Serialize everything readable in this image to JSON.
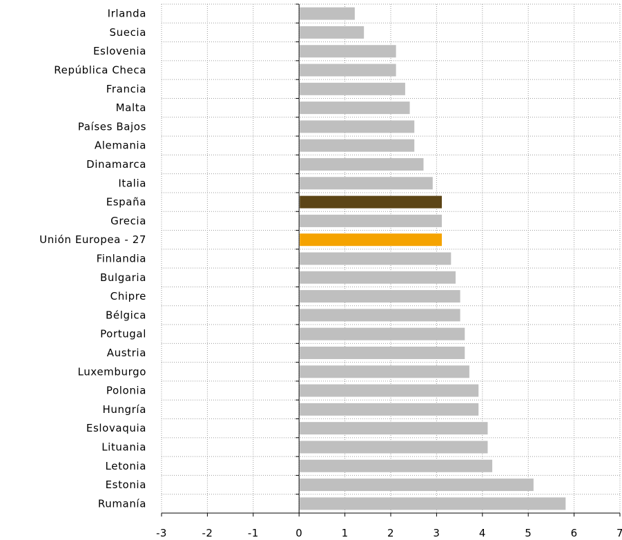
{
  "chart_data": {
    "type": "bar",
    "orientation": "horizontal",
    "title": "",
    "xlabel": "",
    "ylabel": "",
    "xlim": [
      -3,
      7
    ],
    "x_ticks": [
      "-3",
      "-2",
      "-1",
      "0",
      "1",
      "2",
      "3",
      "4",
      "5",
      "6",
      "7"
    ],
    "grid": true,
    "legend": "none",
    "categories": [
      "Irlanda",
      "Suecia",
      "Eslovenia",
      "República Checa",
      "Francia",
      "Malta",
      "Países Bajos",
      "Alemania",
      "Dinamarca",
      "Italia",
      "España",
      "Grecia",
      "Unión Europea - 27",
      "Finlandia",
      "Bulgaria",
      "Chipre",
      "Bélgica",
      "Portugal",
      "Austria",
      "Luxemburgo",
      "Polonia",
      "Hungría",
      "Eslovaquia",
      "Lituania",
      "Letonia",
      "Estonia",
      "Rumanía"
    ],
    "values": [
      1.2,
      1.4,
      2.1,
      2.1,
      2.3,
      2.4,
      2.5,
      2.5,
      2.7,
      2.9,
      3.1,
      3.1,
      3.1,
      3.3,
      3.4,
      3.5,
      3.5,
      3.6,
      3.6,
      3.7,
      3.9,
      3.9,
      4.1,
      4.1,
      4.2,
      5.1,
      5.8
    ],
    "colors": {
      "default": "#bfbfbf",
      "highlights": {
        "España": "#5c4516",
        "Unión Europea - 27": "#f5a300"
      }
    }
  }
}
